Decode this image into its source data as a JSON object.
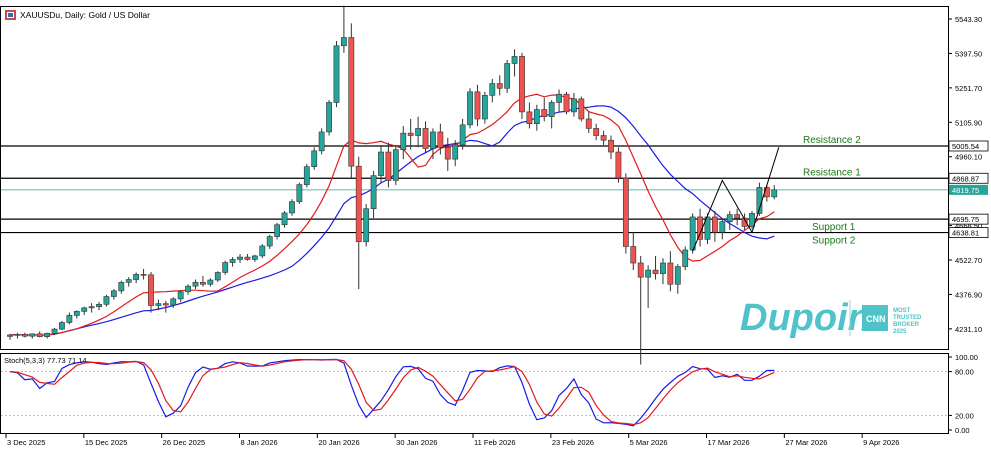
{
  "header": {
    "symbol_title": "XAUUSDu, Daily:  Gold / US Dollar"
  },
  "logo": {
    "brand": "Dupoin",
    "badge_lines": [
      "MOST",
      "TRUSTED",
      "BROKER",
      "2025"
    ],
    "badge_mark": "CNN"
  },
  "colors": {
    "bull": "#26a69a",
    "bear": "#ef5350",
    "ma_fast": "#e31a1c",
    "ma_slow": "#1a1ae6",
    "level_line": "#000000",
    "current_price_line": "#26a69a",
    "annotation_text": "#1a7a1a"
  },
  "chart_data": [
    {
      "type": "candlestick",
      "y_ticks": [
        "5543.30",
        "5397.50",
        "5251.70",
        "5105.90",
        "4960.10",
        "4814.30",
        "4668.50",
        "4522.70",
        "4376.90",
        "4231.10"
      ],
      "y_range": [
        4150,
        5590
      ],
      "x_tick_labels": [
        "3 Dec 2025",
        "15 Dec 2025",
        "26 Dec 2025",
        "8 Jan 2026",
        "20 Jan 2026",
        "30 Jan 2026",
        "11 Feb 2026",
        "23 Feb 2026",
        "5 Mar 2026",
        "17 Mar 2026",
        "27 Mar 2026",
        "9 Apr 2026"
      ],
      "candles": [
        [
          4199,
          4210,
          4185,
          4205
        ],
        [
          4205,
          4215,
          4190,
          4208
        ],
        [
          4208,
          4215,
          4195,
          4200
        ],
        [
          4200,
          4212,
          4190,
          4210
        ],
        [
          4210,
          4220,
          4195,
          4198
        ],
        [
          4198,
          4215,
          4190,
          4212
        ],
        [
          4212,
          4235,
          4205,
          4230
        ],
        [
          4230,
          4265,
          4225,
          4258
        ],
        [
          4258,
          4300,
          4250,
          4288
        ],
        [
          4288,
          4310,
          4275,
          4305
        ],
        [
          4305,
          4325,
          4290,
          4320
        ],
        [
          4320,
          4340,
          4300,
          4325
        ],
        [
          4325,
          4345,
          4310,
          4335
        ],
        [
          4335,
          4375,
          4325,
          4368
        ],
        [
          4368,
          4400,
          4355,
          4392
        ],
        [
          4392,
          4435,
          4380,
          4428
        ],
        [
          4428,
          4450,
          4410,
          4440
        ],
        [
          4440,
          4470,
          4425,
          4462
        ],
        [
          4462,
          4485,
          4440,
          4460
        ],
        [
          4460,
          4472,
          4300,
          4330
        ],
        [
          4330,
          4355,
          4310,
          4338
        ],
        [
          4338,
          4350,
          4300,
          4332
        ],
        [
          4332,
          4365,
          4320,
          4358
        ],
        [
          4358,
          4395,
          4345,
          4388
        ],
        [
          4388,
          4420,
          4375,
          4412
        ],
        [
          4412,
          4440,
          4400,
          4428
        ],
        [
          4428,
          4455,
          4410,
          4420
        ],
        [
          4420,
          4445,
          4410,
          4438
        ],
        [
          4438,
          4475,
          4430,
          4470
        ],
        [
          4470,
          4520,
          4460,
          4512
        ],
        [
          4512,
          4535,
          4495,
          4525
        ],
        [
          4525,
          4548,
          4510,
          4535
        ],
        [
          4535,
          4548,
          4520,
          4525
        ],
        [
          4525,
          4545,
          4515,
          4540
        ],
        [
          4540,
          4590,
          4530,
          4582
        ],
        [
          4582,
          4630,
          4570,
          4622
        ],
        [
          4622,
          4680,
          4610,
          4672
        ],
        [
          4672,
          4730,
          4660,
          4722
        ],
        [
          4722,
          4780,
          4710,
          4770
        ],
        [
          4770,
          4850,
          4760,
          4842
        ],
        [
          4842,
          4930,
          4830,
          4918
        ],
        [
          4918,
          5000,
          4905,
          4985
        ],
        [
          4985,
          5080,
          4970,
          5065
        ],
        [
          5065,
          5200,
          5050,
          5190
        ],
        [
          5190,
          5450,
          5170,
          5430
        ],
        [
          5430,
          5600,
          5400,
          5465
        ],
        [
          5465,
          5525,
          4870,
          4920
        ],
        [
          4920,
          4960,
          4400,
          4600
        ],
        [
          4600,
          4760,
          4580,
          4740
        ],
        [
          4740,
          4900,
          4700,
          4880
        ],
        [
          4880,
          5010,
          4850,
          4980
        ],
        [
          4980,
          5020,
          4830,
          4860
        ],
        [
          4860,
          5010,
          4840,
          4990
        ],
        [
          4990,
          5090,
          4950,
          5060
        ],
        [
          5060,
          5120,
          4990,
          5050
        ],
        [
          5050,
          5130,
          5000,
          5080
        ],
        [
          5080,
          5110,
          4975,
          4995
        ],
        [
          4995,
          5080,
          4950,
          5065
        ],
        [
          5065,
          5100,
          4970,
          5000
        ],
        [
          5000,
          5040,
          4900,
          4950
        ],
        [
          4950,
          5030,
          4920,
          5010
        ],
        [
          5010,
          5120,
          4990,
          5095
        ],
        [
          5095,
          5250,
          5080,
          5235
        ],
        [
          5235,
          5265,
          5090,
          5120
        ],
        [
          5120,
          5235,
          5100,
          5220
        ],
        [
          5220,
          5290,
          5190,
          5270
        ],
        [
          5270,
          5305,
          5220,
          5250
        ],
        [
          5250,
          5370,
          5230,
          5355
        ],
        [
          5355,
          5415,
          5300,
          5385
        ],
        [
          5385,
          5400,
          5120,
          5150
        ],
        [
          5150,
          5190,
          5080,
          5100
        ],
        [
          5100,
          5180,
          5070,
          5160
        ],
        [
          5160,
          5210,
          5110,
          5130
        ],
        [
          5130,
          5200,
          5080,
          5190
        ],
        [
          5190,
          5245,
          5150,
          5225
        ],
        [
          5225,
          5235,
          5140,
          5150
        ],
        [
          5150,
          5230,
          5130,
          5205
        ],
        [
          5205,
          5215,
          5110,
          5120
        ],
        [
          5120,
          5150,
          5060,
          5080
        ],
        [
          5080,
          5100,
          5030,
          5050
        ],
        [
          5050,
          5070,
          5010,
          5030
        ],
        [
          5030,
          5050,
          4950,
          4980
        ],
        [
          4980,
          5000,
          4850,
          4870
        ],
        [
          4870,
          4890,
          4550,
          4580
        ],
        [
          4580,
          4640,
          4480,
          4510
        ],
        [
          4510,
          4540,
          4080,
          4450
        ],
        [
          4450,
          4500,
          4320,
          4480
        ],
        [
          4480,
          4540,
          4440,
          4465
        ],
        [
          4465,
          4530,
          4420,
          4510
        ],
        [
          4510,
          4560,
          4390,
          4420
        ],
        [
          4420,
          4505,
          4380,
          4495
        ],
        [
          4495,
          4580,
          4480,
          4565
        ],
        [
          4565,
          4720,
          4550,
          4705
        ],
        [
          4705,
          4740,
          4580,
          4610
        ],
        [
          4610,
          4720,
          4590,
          4705
        ],
        [
          4705,
          4730,
          4600,
          4640
        ],
        [
          4640,
          4700,
          4610,
          4685
        ],
        [
          4685,
          4730,
          4650,
          4715
        ],
        [
          4715,
          4740,
          4670,
          4700
        ],
        [
          4700,
          4720,
          4650,
          4665
        ],
        [
          4665,
          4730,
          4655,
          4720
        ],
        [
          4720,
          4850,
          4710,
          4830
        ],
        [
          4830,
          4840,
          4770,
          4790
        ],
        [
          4790,
          4840,
          4780,
          4820
        ]
      ],
      "ma_fast_label": "MA fast (red)",
      "ma_slow_label": "MA slow (blue)",
      "horizontal_levels": [
        {
          "name": "Resistance 2",
          "value": 5005.54,
          "label": "5005.54",
          "annotation": "Resistance 2"
        },
        {
          "name": "Resistance 1",
          "value": 4868.87,
          "label": "4868.87",
          "annotation": "Resistance 1"
        },
        {
          "name": "Current price",
          "value": 4819.75,
          "label": "4819.75",
          "annotation": ""
        },
        {
          "name": "Support 1",
          "value": 4695.75,
          "label": "4695.75",
          "annotation": "Support 1"
        },
        {
          "name": "Support 2",
          "value": 4638.81,
          "label": "4638.81",
          "annotation": "Support 2"
        }
      ]
    },
    {
      "type": "line",
      "title": "Stoch(5,3,3) 77.73 71.14",
      "y_ticks": [
        "100.00",
        "80.00",
        "20.00",
        "0.00"
      ],
      "y_range": [
        0,
        100
      ],
      "series": [
        {
          "name": "%K",
          "color": "#1a1ae6"
        },
        {
          "name": "%D",
          "color": "#e31a1c"
        }
      ]
    }
  ]
}
